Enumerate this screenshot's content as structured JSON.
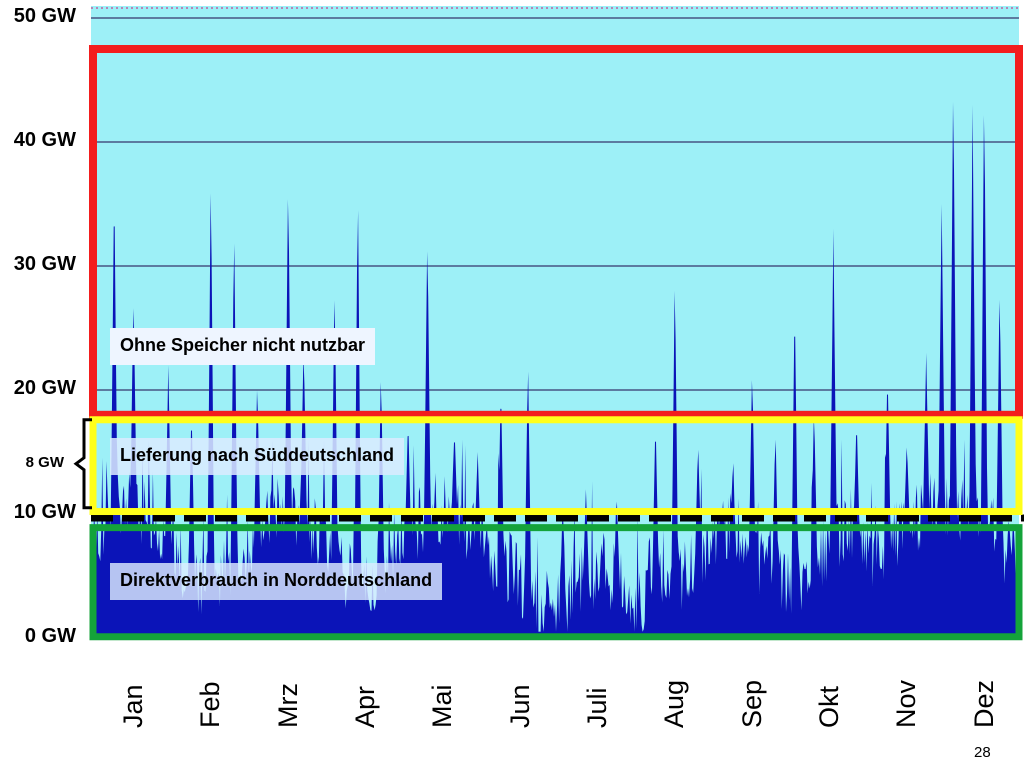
{
  "chart_data": {
    "type": "area",
    "title": "",
    "xlabel": "",
    "ylabel": "",
    "ylim": [
      0,
      50
    ],
    "y_ticks": [
      "50 GW",
      "40 GW",
      "30 GW",
      "20 GW",
      "10 GW",
      "0 GW"
    ],
    "y_tick_values": [
      50,
      40,
      30,
      20,
      10,
      0
    ],
    "bracket_label": "8 GW",
    "months": [
      "Jan",
      "Feb",
      "Mrz",
      "Apr",
      "Mai",
      "Jun",
      "Juli",
      "Aug",
      "Sep",
      "Okt",
      "Nov",
      "Dez"
    ],
    "grid": true,
    "colors": {
      "fill": "#0b14b8",
      "background": "#9df0f7",
      "red_box": "#f31d1d",
      "yellow_box": "#ffff1a",
      "green_box": "#14a33a",
      "grid_line": "#35356b"
    },
    "peaks": [
      {
        "month": 0.3,
        "value": 37.5
      },
      {
        "month": 0.55,
        "value": 28
      },
      {
        "month": 1.0,
        "value": 22
      },
      {
        "month": 1.3,
        "value": 19
      },
      {
        "month": 1.55,
        "value": 38.5
      },
      {
        "month": 1.85,
        "value": 34
      },
      {
        "month": 2.15,
        "value": 21
      },
      {
        "month": 2.55,
        "value": 37.5
      },
      {
        "month": 2.75,
        "value": 24
      },
      {
        "month": 3.15,
        "value": 29
      },
      {
        "month": 3.45,
        "value": 37
      },
      {
        "month": 3.75,
        "value": 22
      },
      {
        "month": 4.1,
        "value": 18
      },
      {
        "month": 4.35,
        "value": 33
      },
      {
        "month": 4.7,
        "value": 17
      },
      {
        "month": 5.0,
        "value": 15
      },
      {
        "month": 5.3,
        "value": 21
      },
      {
        "month": 5.65,
        "value": 23
      },
      {
        "month": 6.1,
        "value": 11
      },
      {
        "month": 6.4,
        "value": 12
      },
      {
        "month": 6.8,
        "value": 11
      },
      {
        "month": 7.3,
        "value": 18
      },
      {
        "month": 7.55,
        "value": 30
      },
      {
        "month": 7.85,
        "value": 16
      },
      {
        "month": 8.3,
        "value": 14
      },
      {
        "month": 8.55,
        "value": 22
      },
      {
        "month": 8.85,
        "value": 17
      },
      {
        "month": 9.1,
        "value": 28
      },
      {
        "month": 9.35,
        "value": 19
      },
      {
        "month": 9.6,
        "value": 33
      },
      {
        "month": 9.9,
        "value": 18
      },
      {
        "month": 10.3,
        "value": 22
      },
      {
        "month": 10.55,
        "value": 16
      },
      {
        "month": 10.8,
        "value": 23
      },
      {
        "month": 11.0,
        "value": 35
      },
      {
        "month": 11.15,
        "value": 46
      },
      {
        "month": 11.4,
        "value": 43
      },
      {
        "month": 11.55,
        "value": 45
      },
      {
        "month": 11.75,
        "value": 29
      }
    ],
    "bands": [
      {
        "name": "red",
        "label": "Ohne Speicher nicht nutzbar",
        "from": 18,
        "to": 47.5
      },
      {
        "name": "yellow",
        "label": "Lieferung nach Süddeutschland",
        "from": 10,
        "to": 18
      },
      {
        "name": "green",
        "label": "Direktverbrauch  in Norddeutschland",
        "from": 0,
        "to": 9
      }
    ]
  },
  "labels": {
    "red_box": "Ohne Speicher nicht nutzbar",
    "yellow_box": "Lieferung nach Süddeutschland",
    "green_box": "Direktverbrauch  in Norddeutschland"
  },
  "page_number": "28"
}
